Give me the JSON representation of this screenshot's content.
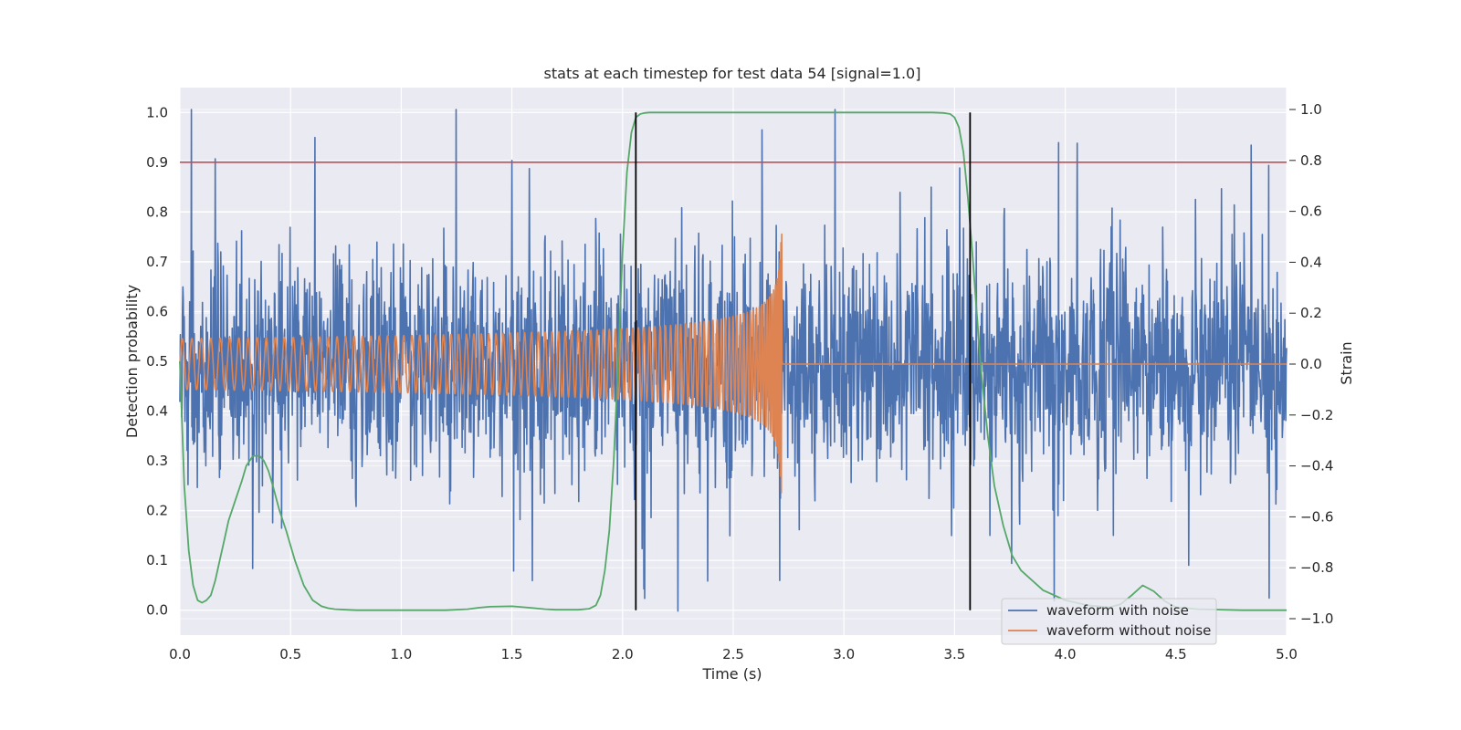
{
  "chart_data": {
    "type": "line",
    "title": "stats at each timestep for test data 54 [signal=1.0]",
    "xlabel": "Time (s)",
    "ylabel": "Detection probability",
    "ylabel_right": "Strain",
    "xlim": [
      0.0,
      5.0
    ],
    "ylim": [
      -0.05,
      1.05
    ],
    "ylim_right": [
      -1.0,
      1.0
    ],
    "grid": true,
    "legend_placement": "lower-right",
    "x_ticks": [
      "0.0",
      "0.5",
      "1.0",
      "1.5",
      "2.0",
      "2.5",
      "3.0",
      "3.5",
      "4.0",
      "4.5",
      "5.0"
    ],
    "y_ticks": [
      "0.0",
      "0.1",
      "0.2",
      "0.3",
      "0.4",
      "0.5",
      "0.6",
      "0.7",
      "0.8",
      "0.9",
      "1.0"
    ],
    "y_ticks_right": [
      "−1.0",
      "−0.8",
      "−0.6",
      "−0.4",
      "−0.2",
      "0.0",
      "0.2",
      "0.4",
      "0.6",
      "0.8",
      "1.0"
    ],
    "threshold": {
      "value": 0.9,
      "color": "#c44e52"
    },
    "event_markers": {
      "x": [
        2.06,
        3.57
      ],
      "color": "#000000"
    },
    "series": [
      {
        "name": "waveform with noise",
        "axis": "right",
        "color": "#4c72b0",
        "kind": "noise",
        "x_range": [
          0.0,
          5.0
        ],
        "center": 0.0,
        "typical_amplitude": 0.28,
        "max": 1.0,
        "min": -0.97,
        "notable_peaks": [
          {
            "x": 0.61,
            "y": 0.89
          },
          {
            "x": 2.96,
            "y": 1.0
          },
          {
            "x": 2.63,
            "y": 0.92
          },
          {
            "x": 3.97,
            "y": 0.87
          },
          {
            "x": 4.84,
            "y": 0.86
          },
          {
            "x": 1.5,
            "y": 0.8
          }
        ],
        "notable_troughs": [
          {
            "x": 2.25,
            "y": -0.97
          },
          {
            "x": 3.95,
            "y": -0.93
          },
          {
            "x": 2.1,
            "y": -0.92
          },
          {
            "x": 2.71,
            "y": -0.85
          }
        ]
      },
      {
        "name": "waveform without noise",
        "axis": "right",
        "color": "#dd8452",
        "kind": "chirp",
        "start": 0.0,
        "merger": 2.72,
        "end": 5.0,
        "amplitude_start": 0.1,
        "amplitude_peak": 0.58,
        "frequency_start_hz": 23,
        "post_merger_value": 0.0
      },
      {
        "name": "",
        "axis": "left",
        "color": "#55a868",
        "x": [
          0.0,
          0.02,
          0.04,
          0.06,
          0.08,
          0.1,
          0.12,
          0.14,
          0.16,
          0.18,
          0.2,
          0.22,
          0.25,
          0.28,
          0.3,
          0.33,
          0.36,
          0.38,
          0.4,
          0.42,
          0.45,
          0.48,
          0.52,
          0.56,
          0.6,
          0.64,
          0.67,
          0.7,
          0.75,
          0.8,
          0.9,
          1.0,
          1.2,
          1.3,
          1.35,
          1.4,
          1.5,
          1.58,
          1.65,
          1.7,
          1.8,
          1.85,
          1.88,
          1.9,
          1.92,
          1.94,
          1.96,
          1.98,
          2.0,
          2.02,
          2.04,
          2.06,
          2.08,
          2.1,
          2.12,
          2.15,
          2.2,
          2.5,
          3.0,
          3.4,
          3.45,
          3.48,
          3.5,
          3.52,
          3.54,
          3.56,
          3.58,
          3.6,
          3.62,
          3.65,
          3.68,
          3.72,
          3.76,
          3.8,
          3.9,
          4.0,
          4.1,
          4.2,
          4.25,
          4.3,
          4.35,
          4.4,
          4.45,
          4.5,
          4.6,
          4.8,
          5.0
        ],
        "values": [
          0.5,
          0.25,
          0.12,
          0.05,
          0.02,
          0.015,
          0.02,
          0.03,
          0.06,
          0.1,
          0.14,
          0.18,
          0.22,
          0.26,
          0.29,
          0.31,
          0.31,
          0.3,
          0.28,
          0.25,
          0.2,
          0.16,
          0.1,
          0.05,
          0.02,
          0.008,
          0.004,
          0.002,
          0.001,
          0.0,
          0.0,
          0.0,
          0.0,
          0.002,
          0.005,
          0.007,
          0.008,
          0.005,
          0.002,
          0.001,
          0.001,
          0.003,
          0.01,
          0.03,
          0.08,
          0.16,
          0.3,
          0.5,
          0.72,
          0.88,
          0.96,
          0.99,
          0.997,
          0.999,
          1.0,
          1.0,
          1.0,
          1.0,
          1.0,
          1.0,
          0.999,
          0.997,
          0.99,
          0.97,
          0.92,
          0.83,
          0.72,
          0.6,
          0.48,
          0.35,
          0.25,
          0.17,
          0.11,
          0.08,
          0.04,
          0.02,
          0.01,
          0.006,
          0.012,
          0.03,
          0.05,
          0.038,
          0.018,
          0.006,
          0.002,
          0.0,
          0.0
        ]
      }
    ]
  }
}
